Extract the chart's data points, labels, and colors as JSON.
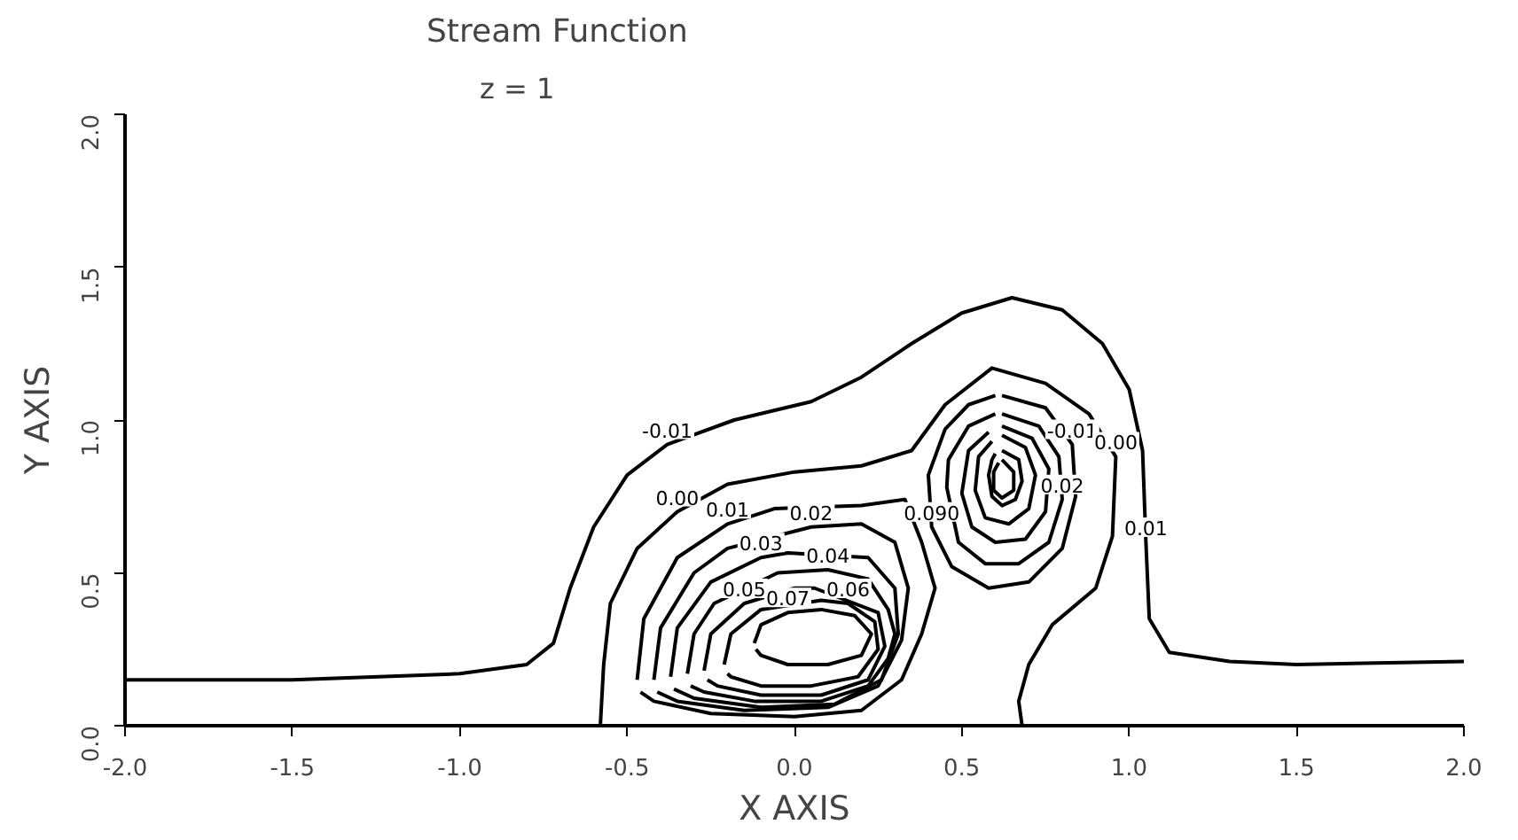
{
  "chart_data": {
    "type": "line",
    "title": "Stream Function",
    "subtitle": "z = 1",
    "xlabel": "X AXIS",
    "ylabel": "Y AXIS",
    "xlim": [
      -2,
      2
    ],
    "ylim": [
      0,
      2
    ],
    "xticks": [
      {
        "value": -2,
        "label": "-2.0"
      },
      {
        "value": -1.5,
        "label": "-1.5"
      },
      {
        "value": -1,
        "label": "-1.0"
      },
      {
        "value": -0.5,
        "label": "-0.5"
      },
      {
        "value": 0,
        "label": "0.0"
      },
      {
        "value": 0.5,
        "label": "0.5"
      },
      {
        "value": 1,
        "label": "1.0"
      },
      {
        "value": 1.5,
        "label": "1.5"
      },
      {
        "value": 2,
        "label": "2.0"
      }
    ],
    "yticks": [
      {
        "value": 0,
        "label": "0.0"
      },
      {
        "value": 0.5,
        "label": "0.5"
      },
      {
        "value": 1,
        "label": "1.0"
      },
      {
        "value": 1.5,
        "label": "1.5"
      },
      {
        "value": 2,
        "label": "2.0"
      }
    ],
    "grid": false,
    "series": [
      {
        "color": "#000000",
        "x": [
          -2.0,
          -1.5,
          -1.0,
          -0.8,
          -0.72,
          -0.67,
          -0.6,
          -0.5,
          -0.38,
          -0.18,
          0.05,
          0.2,
          0.35,
          0.5,
          0.65,
          0.8,
          0.92,
          1.0,
          1.04,
          1.05,
          1.06,
          1.12,
          1.3,
          1.5,
          2.0
        ],
        "values": [
          0.15,
          0.15,
          0.17,
          0.2,
          0.27,
          0.45,
          0.65,
          0.82,
          0.92,
          1.0,
          1.06,
          1.14,
          1.25,
          1.35,
          1.4,
          1.36,
          1.25,
          1.1,
          0.9,
          0.6,
          0.35,
          0.24,
          0.21,
          0.2,
          0.21
        ]
      },
      {
        "color": "#000000",
        "x": [
          -0.58,
          -0.57,
          -0.55,
          -0.47,
          -0.35,
          -0.2,
          0.0,
          0.2,
          0.35,
          0.45,
          0.59,
          0.75,
          0.88,
          0.96,
          0.95,
          0.9,
          0.77,
          0.7,
          0.67,
          0.68
        ],
        "values": [
          0.0,
          0.2,
          0.4,
          0.58,
          0.7,
          0.79,
          0.83,
          0.85,
          0.9,
          1.05,
          1.17,
          1.12,
          1.02,
          0.88,
          0.62,
          0.45,
          0.33,
          0.2,
          0.08,
          0.0
        ]
      },
      {
        "color": "#000000",
        "x": [
          -0.47,
          -0.45,
          -0.35,
          -0.2,
          -0.06,
          0.2,
          0.33,
          0.38,
          0.42,
          0.38,
          0.32,
          0.2,
          0.0,
          -0.25,
          -0.42,
          -0.46
        ],
        "values": [
          0.15,
          0.35,
          0.55,
          0.66,
          0.71,
          0.72,
          0.74,
          0.6,
          0.45,
          0.3,
          0.15,
          0.05,
          0.03,
          0.04,
          0.08,
          0.11
        ]
      },
      {
        "color": "#000000",
        "x": [
          -0.42,
          -0.4,
          -0.3,
          -0.2,
          0.05,
          0.2,
          0.3,
          0.34,
          0.32,
          0.25,
          0.1,
          -0.15,
          -0.35,
          -0.41
        ],
        "values": [
          0.15,
          0.32,
          0.5,
          0.58,
          0.65,
          0.66,
          0.6,
          0.45,
          0.28,
          0.13,
          0.06,
          0.05,
          0.08,
          0.11
        ]
      },
      {
        "color": "#000000",
        "x": [
          -0.37,
          -0.35,
          -0.25,
          -0.1,
          -0.02,
          0.22,
          0.3,
          0.31,
          0.26,
          0.12,
          -0.1,
          -0.3,
          -0.36
        ],
        "values": [
          0.16,
          0.32,
          0.47,
          0.55,
          0.565,
          0.55,
          0.45,
          0.3,
          0.15,
          0.07,
          0.06,
          0.09,
          0.12
        ]
      },
      {
        "color": "#000000",
        "x": [
          -0.32,
          -0.3,
          -0.24,
          -0.05,
          0.1,
          0.22,
          0.28,
          0.3,
          0.28,
          0.22,
          0.08,
          -0.12,
          -0.27,
          -0.31
        ],
        "values": [
          0.17,
          0.3,
          0.4,
          0.5,
          0.51,
          0.48,
          0.38,
          0.3,
          0.22,
          0.13,
          0.08,
          0.08,
          0.11,
          0.13
        ]
      },
      {
        "color": "#000000",
        "x": [
          -0.27,
          -0.25,
          -0.15,
          0.0,
          0.06,
          0.25,
          0.27,
          0.22,
          0.08,
          -0.1,
          -0.23,
          -0.26
        ],
        "values": [
          0.18,
          0.3,
          0.4,
          0.45,
          0.45,
          0.37,
          0.26,
          0.15,
          0.1,
          0.1,
          0.13,
          0.15
        ]
      },
      {
        "color": "#000000",
        "x": [
          -0.21,
          -0.19,
          -0.1,
          0.08,
          0.16,
          0.24,
          0.25,
          0.19,
          0.05,
          -0.1,
          -0.19,
          -0.2
        ],
        "values": [
          0.2,
          0.3,
          0.38,
          0.41,
          0.4,
          0.34,
          0.25,
          0.16,
          0.13,
          0.13,
          0.16,
          0.17
        ]
      },
      {
        "color": "#000000",
        "x": [
          -0.12,
          -0.1,
          -0.02,
          0.08,
          0.18,
          0.23,
          0.2,
          0.1,
          -0.02,
          -0.1,
          -0.115
        ],
        "values": [
          0.27,
          0.33,
          0.37,
          0.38,
          0.36,
          0.3,
          0.23,
          0.2,
          0.2,
          0.23,
          0.25
        ]
      },
      {
        "color": "#000000",
        "x": [
          0.62,
          0.75,
          0.83,
          0.84,
          0.8,
          0.7,
          0.58,
          0.47,
          0.41,
          0.4,
          0.45,
          0.52,
          0.6
        ],
        "values": [
          1.08,
          1.04,
          0.92,
          0.75,
          0.58,
          0.47,
          0.45,
          0.52,
          0.65,
          0.82,
          0.97,
          1.05,
          1.08
        ]
      },
      {
        "color": "#000000",
        "x": [
          0.62,
          0.73,
          0.79,
          0.8,
          0.76,
          0.67,
          0.57,
          0.49,
          0.455,
          0.46,
          0.52,
          0.6
        ],
        "values": [
          1.02,
          0.98,
          0.88,
          0.74,
          0.6,
          0.53,
          0.53,
          0.6,
          0.78,
          0.87,
          0.98,
          1.02
        ]
      },
      {
        "color": "#000000",
        "x": [
          0.62,
          0.71,
          0.76,
          0.75,
          0.69,
          0.6,
          0.53,
          0.5,
          0.52,
          0.58
        ],
        "values": [
          0.98,
          0.94,
          0.84,
          0.7,
          0.61,
          0.6,
          0.65,
          0.76,
          0.9,
          0.96
        ]
      },
      {
        "color": "#000000",
        "x": [
          0.62,
          0.69,
          0.72,
          0.7,
          0.64,
          0.57,
          0.54,
          0.55,
          0.59
        ],
        "values": [
          0.95,
          0.91,
          0.82,
          0.71,
          0.66,
          0.68,
          0.77,
          0.88,
          0.93
        ]
      },
      {
        "color": "#000000",
        "x": [
          0.62,
          0.67,
          0.68,
          0.66,
          0.62,
          0.59,
          0.58,
          0.59,
          0.6
        ],
        "values": [
          0.9,
          0.87,
          0.8,
          0.74,
          0.72,
          0.75,
          0.82,
          0.87,
          0.89
        ]
      },
      {
        "color": "#000000",
        "x": [
          0.62,
          0.655,
          0.655,
          0.62,
          0.595,
          0.595,
          0.61
        ],
        "values": [
          0.87,
          0.83,
          0.77,
          0.745,
          0.77,
          0.83,
          0.86
        ]
      }
    ],
    "annotations": [
      {
        "text": "-0.01",
        "x": -0.38,
        "y": 0.92
      },
      {
        "text": "0.00",
        "x": -0.35,
        "y": 0.7
      },
      {
        "text": "0.01",
        "x": -0.2,
        "y": 0.66
      },
      {
        "text": "0.02",
        "x": 0.05,
        "y": 0.65
      },
      {
        "text": "0.03",
        "x": -0.1,
        "y": 0.55
      },
      {
        "text": "0.04",
        "x": 0.1,
        "y": 0.51
      },
      {
        "text": "0.05",
        "x": -0.15,
        "y": 0.4
      },
      {
        "text": "0.06",
        "x": 0.16,
        "y": 0.4
      },
      {
        "text": "0.07",
        "x": -0.02,
        "y": 0.37
      },
      {
        "text": "0.090",
        "x": 0.41,
        "y": 0.65
      },
      {
        "text": "-0.01",
        "x": 0.83,
        "y": 0.92
      },
      {
        "text": "0.02",
        "x": 0.8,
        "y": 0.74
      },
      {
        "text": "0.00",
        "x": 0.96,
        "y": 0.88
      },
      {
        "text": "0.01",
        "x": 1.05,
        "y": 0.6
      }
    ]
  }
}
